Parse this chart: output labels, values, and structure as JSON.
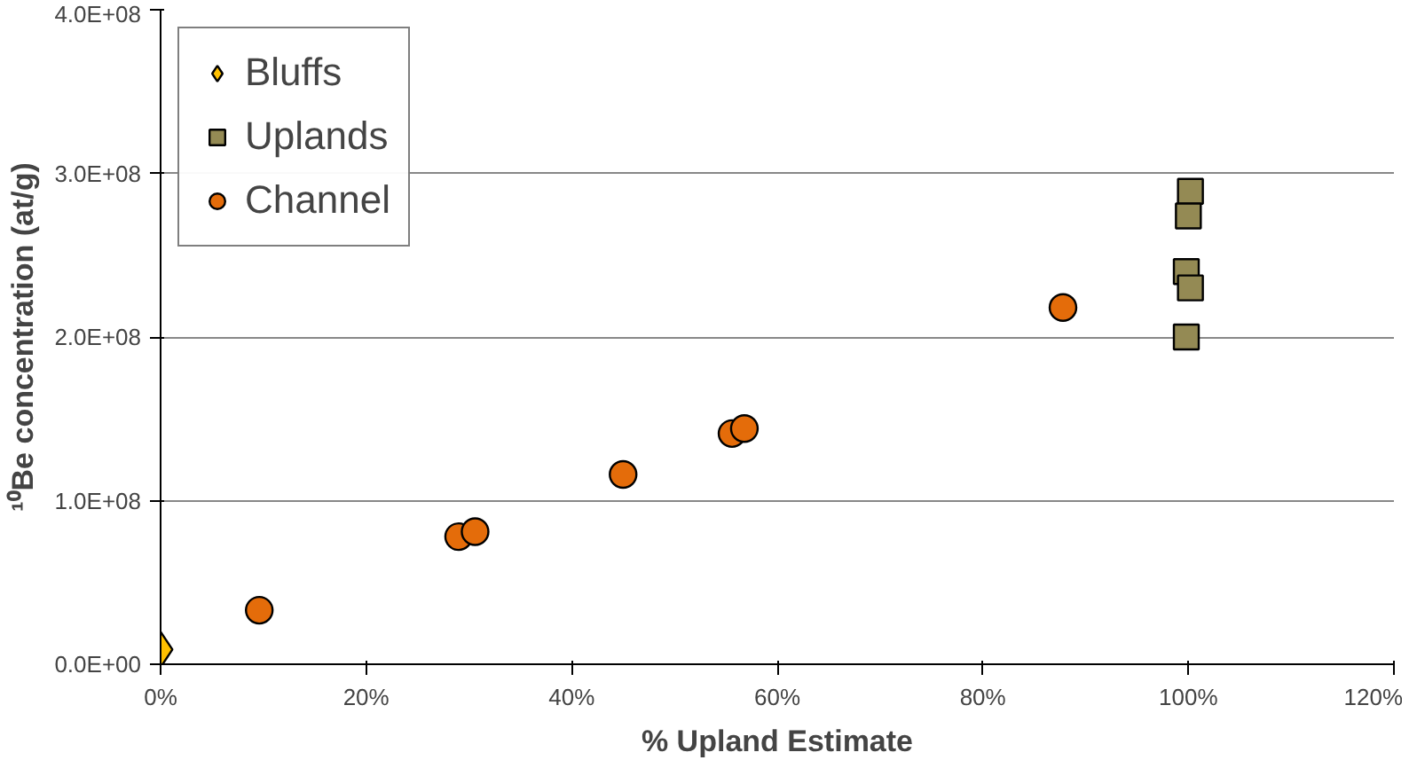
{
  "chart_data": {
    "type": "scatter",
    "xlabel": "% Upland Estimate",
    "ylabel": "¹⁰Be concentration (at/g)",
    "xlim": [
      0,
      120
    ],
    "xticks": [
      {
        "value": 0,
        "label": "0%"
      },
      {
        "value": 20,
        "label": "20%"
      },
      {
        "value": 40,
        "label": "40%"
      },
      {
        "value": 60,
        "label": "60%"
      },
      {
        "value": 80,
        "label": "80%"
      },
      {
        "value": 100,
        "label": "100%"
      },
      {
        "value": 120,
        "label": "120%"
      }
    ],
    "ylim": [
      0,
      400000000
    ],
    "yticks": [
      {
        "value": 0,
        "label": "0.0E+00"
      },
      {
        "value": 100000000,
        "label": "1.0E+08"
      },
      {
        "value": 200000000,
        "label": "2.0E+08"
      },
      {
        "value": 300000000,
        "label": "3.0E+08"
      },
      {
        "value": 400000000,
        "label": "4.0E+08"
      }
    ],
    "grid": "y",
    "legend": "top left",
    "series": [
      {
        "name": "Bluffs",
        "color": "#ffc000",
        "marker": "diamond",
        "x": [
          0
        ],
        "values": [
          9000000
        ]
      },
      {
        "name": "Uplands",
        "color": "#948a54",
        "marker": "square",
        "x": [
          100.2,
          100,
          99.8,
          100.2,
          99.8
        ],
        "values": [
          289000000,
          274000000,
          240000000,
          230000000,
          200000000
        ]
      },
      {
        "name": "Channel",
        "color": "#e46c0a",
        "marker": "circle",
        "x": [
          9.6,
          29,
          30.6,
          45,
          55.6,
          56.8,
          87.8
        ],
        "values": [
          33000000,
          78000000,
          81000000,
          116000000,
          141000000,
          144000000,
          218000000
        ]
      }
    ]
  }
}
